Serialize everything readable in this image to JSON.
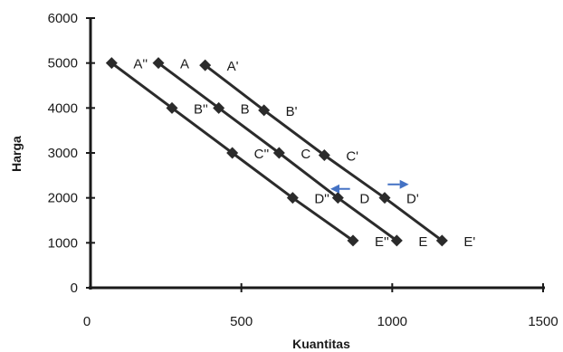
{
  "chart_data": {
    "type": "line",
    "title": "",
    "xlabel": "Kuantitas",
    "ylabel": "Harga",
    "xlim": [
      0,
      1500
    ],
    "ylim": [
      0,
      6000
    ],
    "xticks": [
      "0",
      "500",
      "1000",
      "1500"
    ],
    "yticks": [
      "0",
      "1000",
      "2000",
      "3000",
      "4000",
      "5000",
      "6000"
    ],
    "grid": false,
    "legend": "none",
    "series": [
      {
        "color": "#2b2b2b",
        "points": [
          {
            "x": 70,
            "y": 5000,
            "label": "A''"
          },
          {
            "x": 270,
            "y": 4000,
            "label": "B''"
          },
          {
            "x": 470,
            "y": 3000,
            "label": "C''"
          },
          {
            "x": 670,
            "y": 2000,
            "label": "D''"
          },
          {
            "x": 870,
            "y": 1050,
            "label": "E''"
          }
        ]
      },
      {
        "color": "#2b2b2b",
        "points": [
          {
            "x": 225,
            "y": 5000,
            "label": "A"
          },
          {
            "x": 425,
            "y": 4000,
            "label": "B"
          },
          {
            "x": 625,
            "y": 3000,
            "label": "C"
          },
          {
            "x": 820,
            "y": 2000,
            "label": "D"
          },
          {
            "x": 1015,
            "y": 1050,
            "label": "E"
          }
        ]
      },
      {
        "color": "#2b2b2b",
        "points": [
          {
            "x": 380,
            "y": 4950,
            "label": "A'"
          },
          {
            "x": 575,
            "y": 3950,
            "label": "B'"
          },
          {
            "x": 775,
            "y": 2950,
            "label": "C'"
          },
          {
            "x": 975,
            "y": 2000,
            "label": "D'"
          },
          {
            "x": 1165,
            "y": 1050,
            "label": "E'"
          }
        ]
      }
    ],
    "arrows": [
      {
        "direction": "left",
        "color": "#4472c4",
        "x_from": 860,
        "x_to": 795,
        "y": 2200
      },
      {
        "direction": "right",
        "color": "#4472c4",
        "x_from": 985,
        "x_to": 1055,
        "y": 2300
      }
    ]
  }
}
